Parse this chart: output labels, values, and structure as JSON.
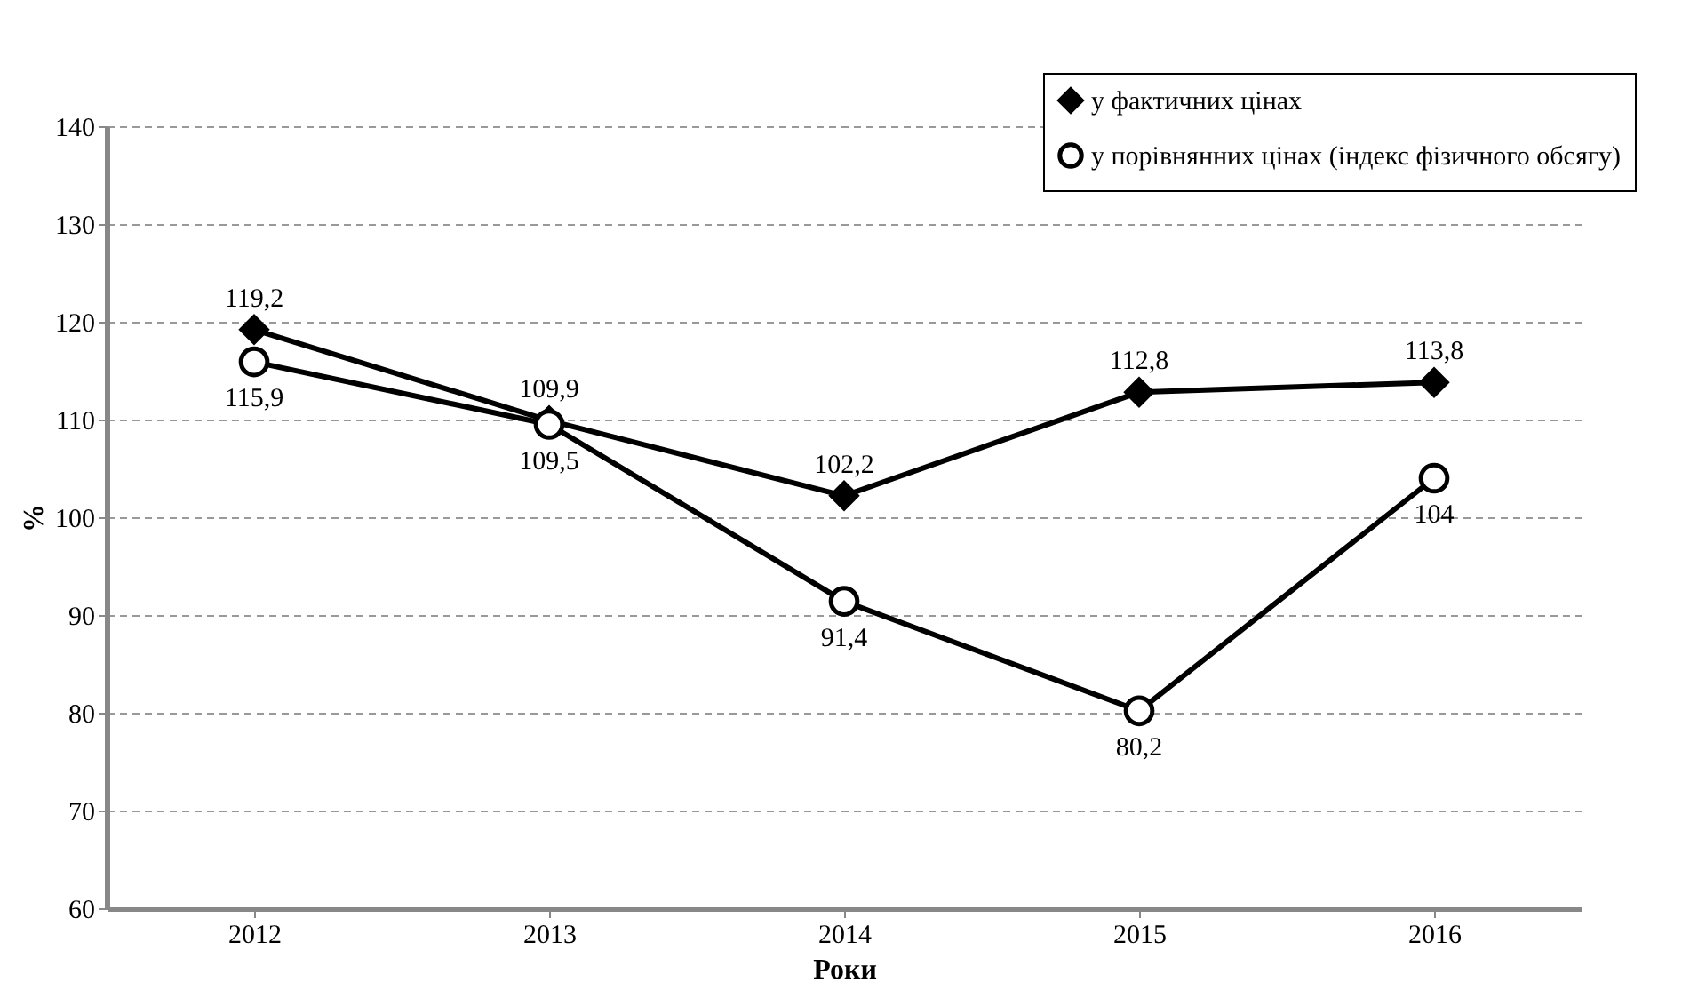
{
  "chart_data": {
    "type": "line",
    "xlabel": "Роки",
    "ylabel": "%",
    "categories": [
      "2012",
      "2013",
      "2014",
      "2015",
      "2016"
    ],
    "series": [
      {
        "name": "у фактичних цінах",
        "color": "#000000",
        "marker": "diamond",
        "values": [
          119.2,
          109.9,
          102.2,
          112.8,
          113.8
        ],
        "value_labels": [
          "119,2",
          "109,9",
          "102,2",
          "112,8",
          "113,8"
        ]
      },
      {
        "name": "у порівнянних цінах (індекс фізичного обсягу)",
        "color": "#000000",
        "marker": "circle",
        "values": [
          115.9,
          109.5,
          91.4,
          80.2,
          104
        ],
        "value_labels": [
          "115,9",
          "109,5",
          "91,4",
          "80,2",
          "104"
        ]
      }
    ],
    "ylim": [
      60,
      140
    ],
    "yticks": [
      60,
      70,
      80,
      90,
      100,
      110,
      120,
      130,
      140
    ],
    "grid": "y",
    "legend": "top right",
    "line_style": "solid"
  }
}
